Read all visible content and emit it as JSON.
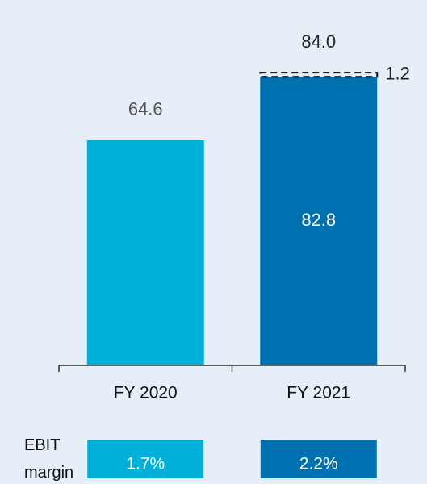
{
  "chart_data": {
    "type": "bar",
    "categories": [
      "FY 2020",
      "FY 2021"
    ],
    "series": [
      {
        "colors": [
          "#00b0d8",
          "#0071b0"
        ],
        "values": [
          64.6,
          82.8
        ]
      },
      {
        "style": "dashed",
        "color": "#000000",
        "values": [
          null,
          1.2
        ]
      }
    ],
    "totals": [
      null,
      84.0
    ],
    "total_labels": [
      null,
      "84.0"
    ],
    "ylim": [
      0,
      100
    ],
    "margin_label": "EBIT margin",
    "margins": [
      1.7,
      2.2
    ],
    "margin_labels": [
      "1.7%",
      "2.2%"
    ]
  }
}
